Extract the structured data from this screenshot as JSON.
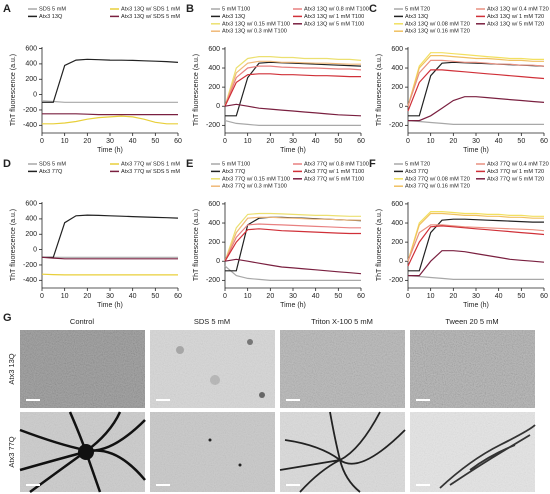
{
  "chart_data": [
    {
      "type": "line",
      "panel": "A",
      "xlabel": "Time (h)",
      "ylabel": "ThT fluorescence (a.u.)",
      "x": [
        0,
        5,
        10,
        15,
        20,
        25,
        30,
        35,
        40,
        45,
        50,
        55,
        60
      ],
      "xlim": [
        0,
        60
      ],
      "xticks": [
        0,
        10,
        20,
        30,
        40,
        50,
        60
      ],
      "ylim": [
        -500,
        620
      ],
      "yticks": [
        -400,
        -200,
        0,
        200,
        400,
        600
      ],
      "series": [
        {
          "name": "SDS 5 mM",
          "color": "#a8a8a8",
          "values": [
            -80,
            -90,
            -100,
            -100,
            -100,
            -100,
            -100,
            -100,
            -100,
            -100,
            -100,
            -100,
            -100
          ]
        },
        {
          "name": "Atx3 13Q",
          "color": "#222222",
          "values": [
            -100,
            -100,
            380,
            450,
            460,
            455,
            450,
            448,
            445,
            440,
            435,
            430,
            420
          ]
        },
        {
          "name": "Atx3 13Q w/ SDS 1 mM",
          "color": "#e8cf3a",
          "values": [
            -380,
            -380,
            -370,
            -350,
            -320,
            -300,
            -290,
            -280,
            -290,
            -320,
            -360,
            -380,
            -380
          ]
        },
        {
          "name": "Atx3 13Q w/ SDS 5 mM",
          "color": "#7a2040",
          "values": [
            -250,
            -250,
            -250,
            -250,
            -255,
            -260,
            -260,
            -260,
            -260,
            -260,
            -260,
            -260,
            -260
          ]
        }
      ]
    },
    {
      "type": "line",
      "panel": "B",
      "xlabel": "Time (h)",
      "ylabel": "ThT fluorescence (a.u.)",
      "x": [
        0,
        5,
        10,
        15,
        20,
        25,
        30,
        35,
        40,
        45,
        50,
        55,
        60
      ],
      "xlim": [
        0,
        60
      ],
      "xticks": [
        0,
        10,
        20,
        30,
        40,
        50,
        60
      ],
      "ylim": [
        -280,
        620
      ],
      "yticks": [
        -200,
        0,
        200,
        400,
        600
      ],
      "series": [
        {
          "name": "5 mM T100",
          "color": "#a8a8a8",
          "values": [
            -150,
            -180,
            -190,
            -200,
            -200,
            -200,
            -200,
            -200,
            -200,
            -200,
            -200,
            -200,
            -200
          ]
        },
        {
          "name": "Atx3 13Q",
          "color": "#222222",
          "values": [
            -100,
            -100,
            300,
            450,
            460,
            455,
            450,
            445,
            440,
            435,
            430,
            425,
            420
          ]
        },
        {
          "name": "Atx3 13Q w/ 0.15 mM T100",
          "color": "#ece070",
          "values": [
            0,
            400,
            500,
            520,
            520,
            510,
            510,
            500,
            500,
            500,
            490,
            490,
            480
          ]
        },
        {
          "name": "Atx3 13Q w/ 0.3 mM T100",
          "color": "#f0b878",
          "values": [
            0,
            350,
            450,
            470,
            470,
            460,
            460,
            455,
            450,
            450,
            445,
            440,
            440
          ]
        },
        {
          "name": "Atx3 13Q w/ 0.8 mM T100",
          "color": "#e88080",
          "values": [
            0,
            300,
            400,
            420,
            420,
            410,
            405,
            400,
            400,
            395,
            390,
            390,
            380
          ]
        },
        {
          "name": "Atx3 13Q w/ 1 mM T100",
          "color": "#d03038",
          "values": [
            0,
            250,
            330,
            340,
            340,
            330,
            330,
            325,
            320,
            320,
            315,
            310,
            310
          ]
        },
        {
          "name": "Atx3 13Q w/ 5 mM T100",
          "color": "#7a2040",
          "values": [
            0,
            20,
            0,
            -20,
            -30,
            -40,
            -50,
            -60,
            -70,
            -80,
            -90,
            -95,
            -100
          ]
        }
      ]
    },
    {
      "type": "line",
      "panel": "C",
      "xlabel": "Time (h)",
      "ylabel": "ThT fluorescence (a.u.)",
      "x": [
        0,
        5,
        10,
        15,
        20,
        25,
        30,
        35,
        40,
        45,
        50,
        55,
        60
      ],
      "xlim": [
        0,
        60
      ],
      "xticks": [
        0,
        10,
        20,
        30,
        40,
        50,
        60
      ],
      "ylim": [
        -280,
        620
      ],
      "yticks": [
        -200,
        0,
        200,
        400,
        600
      ],
      "series": [
        {
          "name": "5 mM T20",
          "color": "#a8a8a8",
          "values": [
            -150,
            -160,
            -170,
            -180,
            -190,
            -190,
            -190,
            -190,
            -190,
            -190,
            -190,
            -190,
            -190
          ]
        },
        {
          "name": "Atx3 13Q",
          "color": "#222222",
          "values": [
            -100,
            -100,
            320,
            450,
            460,
            455,
            450,
            445,
            440,
            435,
            430,
            425,
            420
          ]
        },
        {
          "name": "Atx3 13Q w/ 0.08 mM T20",
          "color": "#f2e060",
          "values": [
            0,
            420,
            560,
            560,
            550,
            540,
            530,
            520,
            510,
            500,
            500,
            490,
            490
          ]
        },
        {
          "name": "Atx3 13Q w/ 0.16 mM T20",
          "color": "#f0c060",
          "values": [
            0,
            400,
            530,
            530,
            520,
            510,
            500,
            500,
            490,
            480,
            480,
            470,
            470
          ]
        },
        {
          "name": "Atx3 13Q w/ 0.4 mM T20",
          "color": "#e89080",
          "values": [
            0,
            350,
            480,
            480,
            470,
            460,
            460,
            450,
            440,
            440,
            430,
            430,
            420
          ]
        },
        {
          "name": "Atx3 13Q w/ 1 mM T20",
          "color": "#d03038",
          "values": [
            -50,
            250,
            380,
            380,
            370,
            360,
            350,
            340,
            330,
            320,
            310,
            300,
            290
          ]
        },
        {
          "name": "Atx3 13Q w/ 5 mM T20",
          "color": "#7a2040",
          "values": [
            -150,
            -150,
            -100,
            -20,
            60,
            100,
            100,
            90,
            80,
            70,
            60,
            50,
            40
          ]
        }
      ]
    },
    {
      "type": "line",
      "panel": "D",
      "xlabel": "Time (h)",
      "ylabel": "ThT fluorescence (a.u.)",
      "x": [
        0,
        5,
        10,
        15,
        20,
        25,
        30,
        35,
        40,
        45,
        50,
        55,
        60
      ],
      "xlim": [
        0,
        60
      ],
      "xticks": [
        0,
        10,
        20,
        30,
        40,
        50,
        60
      ],
      "ylim": [
        -500,
        620
      ],
      "yticks": [
        -400,
        -200,
        0,
        200,
        400,
        600
      ],
      "series": [
        {
          "name": "SDS 5 mM",
          "color": "#a8a8a8",
          "values": [
            -100,
            -100,
            -100,
            -100,
            -100,
            -100,
            -100,
            -100,
            -100,
            -100,
            -100,
            -100,
            -100
          ]
        },
        {
          "name": "Atx3 77Q",
          "color": "#222222",
          "values": [
            -100,
            -100,
            350,
            440,
            450,
            445,
            440,
            435,
            430,
            425,
            420,
            415,
            410
          ]
        },
        {
          "name": "Atx3 77Q w/ SDS 1 mM",
          "color": "#e8cf3a",
          "values": [
            -320,
            -325,
            -330,
            -330,
            -330,
            -330,
            -330,
            -330,
            -330,
            -330,
            -330,
            -330,
            -330
          ]
        },
        {
          "name": "Atx3 77Q w/ SDS 5 mM",
          "color": "#7a2040",
          "values": [
            -100,
            -110,
            -120,
            -120,
            -120,
            -120,
            -120,
            -120,
            -120,
            -120,
            -120,
            -120,
            -120
          ]
        }
      ]
    },
    {
      "type": "line",
      "panel": "E",
      "xlabel": "Time (h)",
      "ylabel": "ThT fluorescence (a.u.)",
      "x": [
        0,
        5,
        10,
        15,
        20,
        25,
        30,
        35,
        40,
        45,
        50,
        55,
        60
      ],
      "xlim": [
        0,
        60
      ],
      "xticks": [
        0,
        10,
        20,
        30,
        40,
        50,
        60
      ],
      "ylim": [
        -280,
        620
      ],
      "yticks": [
        -200,
        0,
        200,
        400,
        600
      ],
      "series": [
        {
          "name": "5 mM T100",
          "color": "#a8a8a8",
          "values": [
            -50,
            -150,
            -180,
            -190,
            -200,
            -200,
            -200,
            -200,
            -200,
            -200,
            -200,
            -200,
            -200
          ]
        },
        {
          "name": "Atx3 77Q",
          "color": "#222222",
          "values": [
            -100,
            -100,
            380,
            450,
            460,
            460,
            455,
            450,
            445,
            440,
            435,
            430,
            425
          ]
        },
        {
          "name": "Atx3 77Q w/ 0.15 mM T100",
          "color": "#ece070",
          "values": [
            0,
            350,
            490,
            500,
            500,
            495,
            490,
            485,
            480,
            480,
            475,
            470,
            470
          ]
        },
        {
          "name": "Atx3 77Q w/ 0.3 mM T100",
          "color": "#f0b878",
          "values": [
            0,
            300,
            450,
            460,
            460,
            455,
            450,
            445,
            440,
            440,
            435,
            430,
            430
          ]
        },
        {
          "name": "Atx3 77Q w/ 0.8 mM T100",
          "color": "#e88080",
          "values": [
            0,
            250,
            380,
            390,
            385,
            380,
            375,
            370,
            365,
            360,
            355,
            350,
            350
          ]
        },
        {
          "name": "Atx3 77Q w/ 1 mM T100",
          "color": "#d03038",
          "values": [
            0,
            200,
            330,
            340,
            330,
            320,
            315,
            310,
            305,
            300,
            295,
            290,
            290
          ]
        },
        {
          "name": "Atx3 77Q w/ 5 mM T100",
          "color": "#7a2040",
          "values": [
            0,
            20,
            0,
            -20,
            -40,
            -60,
            -70,
            -80,
            -90,
            -100,
            -110,
            -120,
            -130
          ]
        }
      ]
    },
    {
      "type": "line",
      "panel": "F",
      "xlabel": "Time (h)",
      "ylabel": "ThT fluorescence (a.u.)",
      "x": [
        0,
        5,
        10,
        15,
        20,
        25,
        30,
        35,
        40,
        45,
        50,
        55,
        60
      ],
      "xlim": [
        0,
        60
      ],
      "xticks": [
        0,
        10,
        20,
        30,
        40,
        50,
        60
      ],
      "ylim": [
        -280,
        620
      ],
      "yticks": [
        -200,
        0,
        200,
        400,
        600
      ],
      "series": [
        {
          "name": "5 mM T20",
          "color": "#a8a8a8",
          "values": [
            -150,
            -160,
            -170,
            -180,
            -190,
            -190,
            -190,
            -190,
            -190,
            -190,
            -190,
            -190,
            -190
          ]
        },
        {
          "name": "Atx3 77Q",
          "color": "#222222",
          "values": [
            -100,
            -100,
            300,
            430,
            440,
            440,
            435,
            430,
            425,
            420,
            415,
            410,
            410
          ]
        },
        {
          "name": "Atx3 77Q w/ 0.08 mM T20",
          "color": "#f2e060",
          "values": [
            0,
            400,
            520,
            520,
            510,
            500,
            500,
            490,
            490,
            480,
            480,
            470,
            470
          ]
        },
        {
          "name": "Atx3 77Q w/ 0.16 mM T20",
          "color": "#f0c060",
          "values": [
            0,
            380,
            500,
            500,
            490,
            480,
            480,
            470,
            470,
            460,
            460,
            450,
            450
          ]
        },
        {
          "name": "Atx3 77Q w/ 0.4 mM T20",
          "color": "#e89080",
          "values": [
            0,
            300,
            380,
            380,
            370,
            360,
            355,
            350,
            345,
            340,
            335,
            330,
            320
          ]
        },
        {
          "name": "Atx3 77Q w/ 1 mM T20",
          "color": "#d03038",
          "values": [
            -50,
            200,
            360,
            370,
            360,
            350,
            340,
            330,
            320,
            310,
            300,
            290,
            280
          ]
        },
        {
          "name": "Atx3 77Q w/ 5 mM T20",
          "color": "#7a2040",
          "values": [
            -150,
            -150,
            0,
            110,
            110,
            100,
            80,
            60,
            40,
            20,
            10,
            0,
            -10
          ]
        }
      ]
    }
  ],
  "panel_g": {
    "panel": "G",
    "columns": [
      "Control",
      "SDS 5 mM",
      "Triton X-100 5 mM",
      "Tween 20 5 mM"
    ],
    "rows": [
      "Atx3 13Q",
      "Atx3 77Q"
    ]
  }
}
